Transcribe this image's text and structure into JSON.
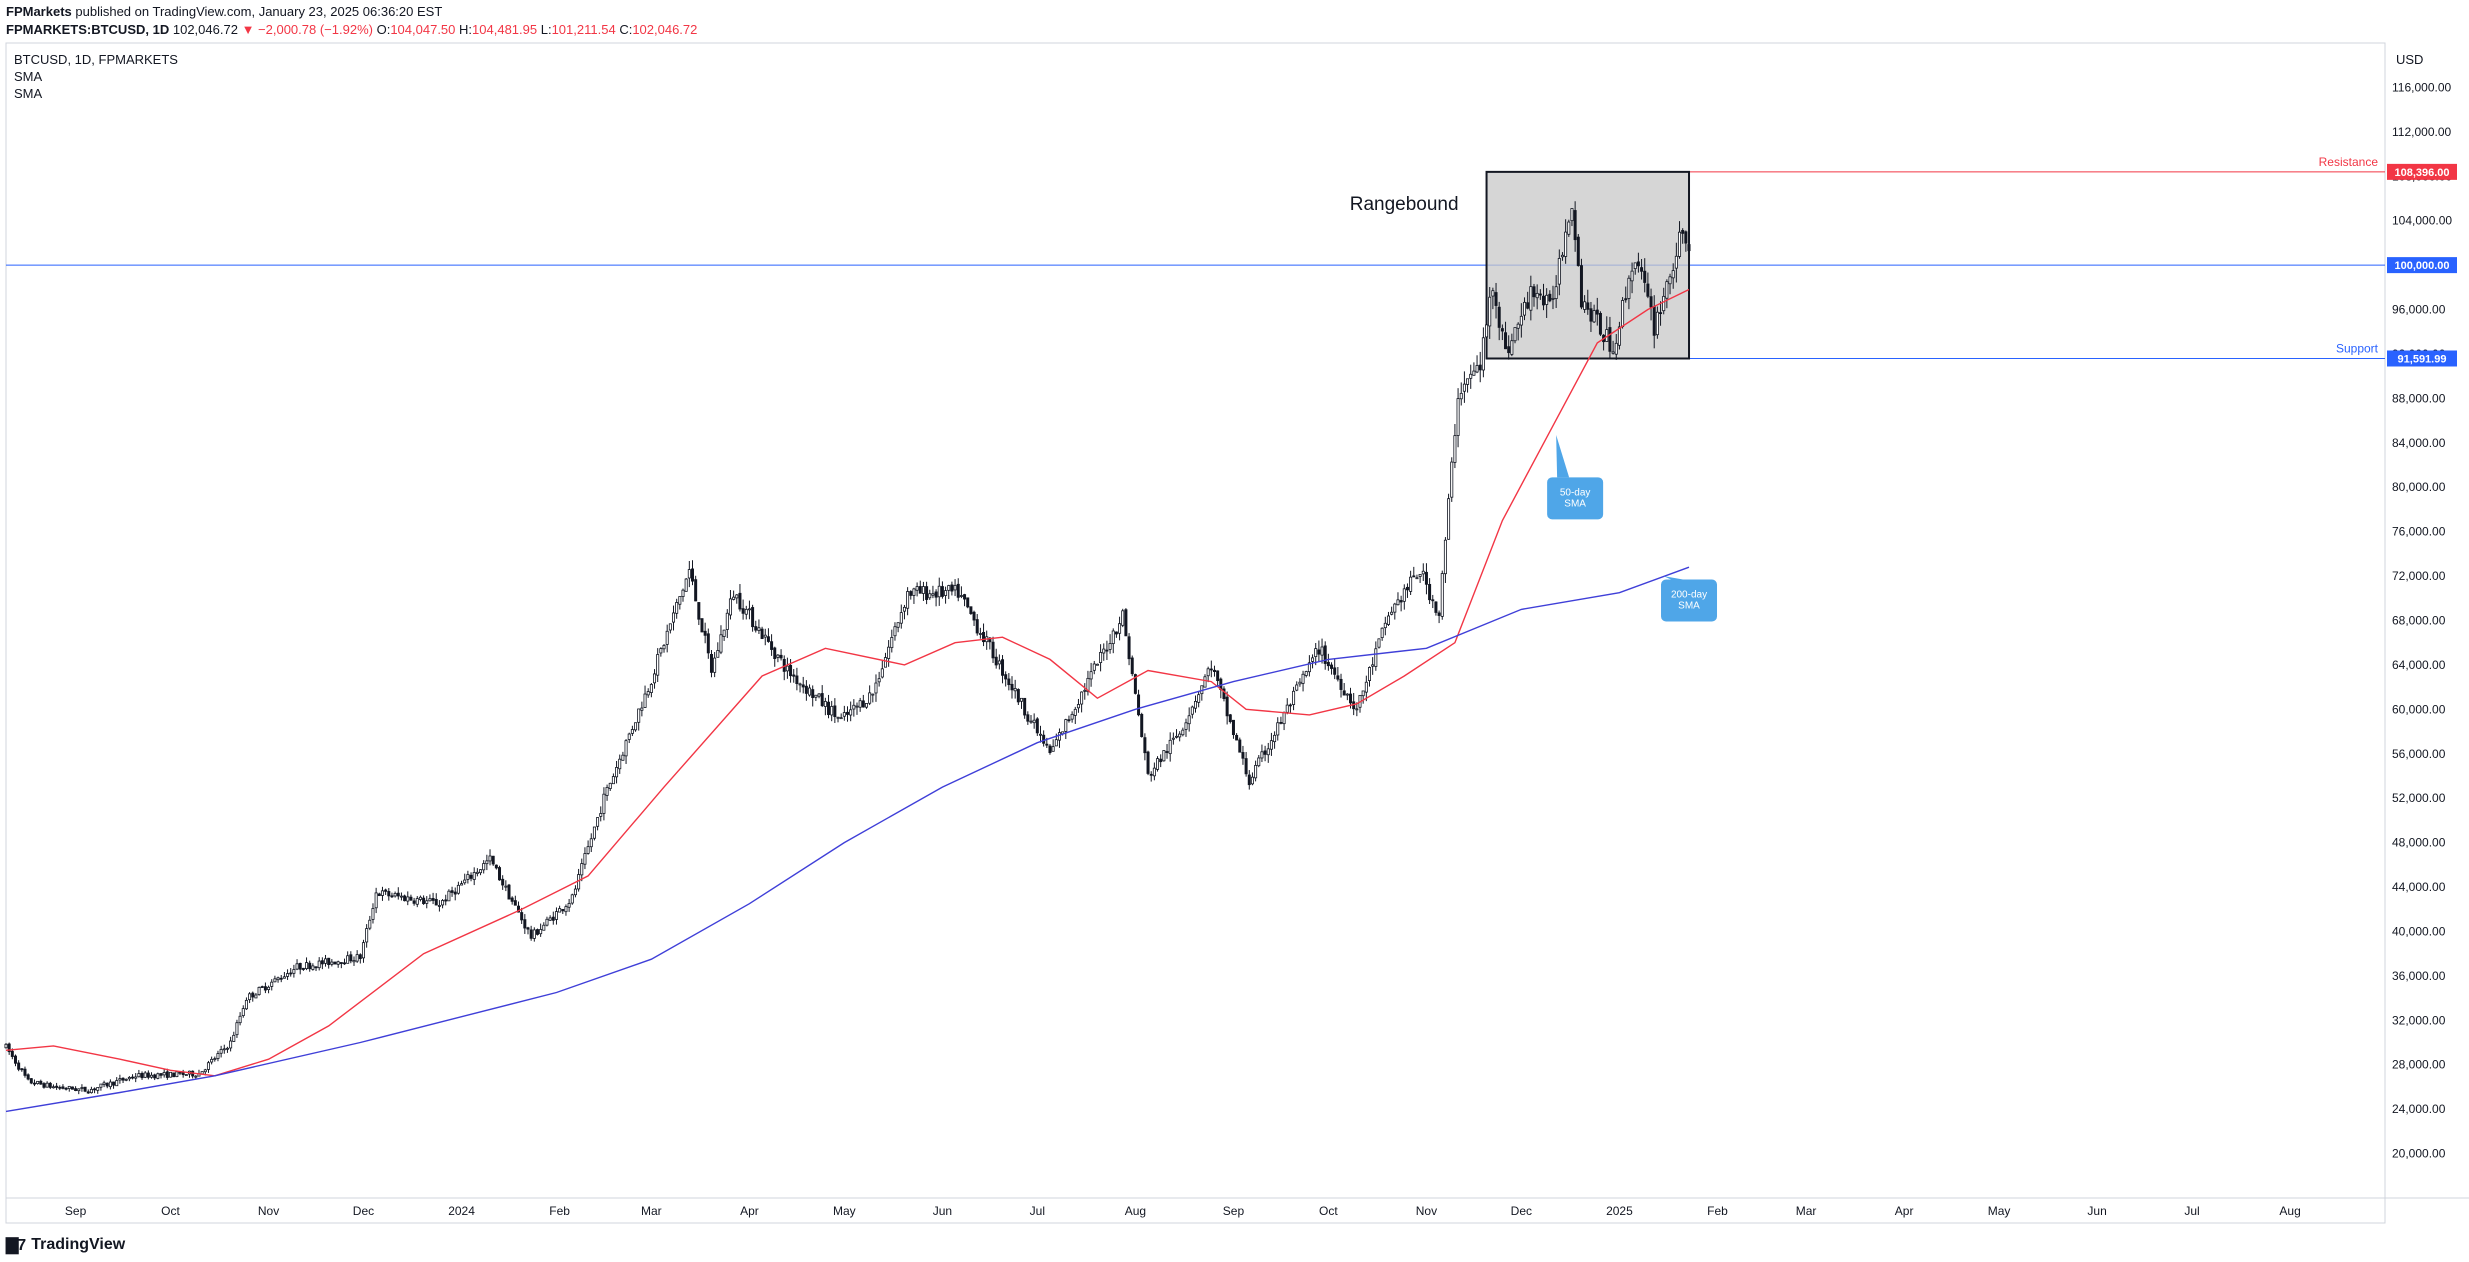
{
  "header": {
    "publisher": "FPMarkets",
    "published_text": "published on TradingView.com, January 23, 2025 06:36:20 EST",
    "symbol": "FPMARKETS:BTCUSD, 1D",
    "last": "102,046.72",
    "change": "▼ −2,000.78 (−1.92%)",
    "o_label": "O:",
    "o": "104,047.50",
    "h_label": "H:",
    "h": "104,481.95",
    "l_label": "L:",
    "l": "101,211.54",
    "c_label": "C:",
    "c": "102,046.72"
  },
  "legend": {
    "title": "BTCUSD, 1D, FPMARKETS",
    "sma1": "SMA",
    "sma2": "SMA"
  },
  "currency": "USD",
  "footer": {
    "brand": "TradingView",
    "logo_icon": "tradingview-logo-icon"
  },
  "colors": {
    "bull": "#131722",
    "bear": "#131722",
    "sma50": "#f23645",
    "sma200": "#3f3fd8",
    "level": "#2962ff",
    "resistance": "#f23645",
    "box_fill": "#c8c8c8",
    "callout": "#4fa6e8"
  },
  "chart_data": {
    "type": "candlestick",
    "title": "",
    "y_min": 16000,
    "y_max": 120000,
    "y_ticks": [
      "116,000.00",
      "112,000.00",
      "108,000.00",
      "104,000.00",
      "100,000.00",
      "96,000.00",
      "92,000.00",
      "88,000.00",
      "84,000.00",
      "80,000.00",
      "76,000.00",
      "72,000.00",
      "68,000.00",
      "64,000.00",
      "60,000.00",
      "56,000.00",
      "52,000.00",
      "48,000.00",
      "44,000.00",
      "40,000.00",
      "36,000.00",
      "32,000.00",
      "28,000.00",
      "24,000.00",
      "20,000.00"
    ],
    "x_start": "2023-08-10",
    "x_end": "2025-08-31",
    "x_ticks": [
      {
        "label": "Sep",
        "date": "2023-09-01"
      },
      {
        "label": "Oct",
        "date": "2023-10-01"
      },
      {
        "label": "Nov",
        "date": "2023-11-01"
      },
      {
        "label": "Dec",
        "date": "2023-12-01"
      },
      {
        "label": "2024",
        "date": "2024-01-01"
      },
      {
        "label": "Feb",
        "date": "2024-02-01"
      },
      {
        "label": "Mar",
        "date": "2024-03-01"
      },
      {
        "label": "Apr",
        "date": "2024-04-01"
      },
      {
        "label": "May",
        "date": "2024-05-01"
      },
      {
        "label": "Jun",
        "date": "2024-06-01"
      },
      {
        "label": "Jul",
        "date": "2024-07-01"
      },
      {
        "label": "Aug",
        "date": "2024-08-01"
      },
      {
        "label": "Sep",
        "date": "2024-09-01"
      },
      {
        "label": "Oct",
        "date": "2024-10-01"
      },
      {
        "label": "Nov",
        "date": "2024-11-01"
      },
      {
        "label": "Dec",
        "date": "2024-12-01"
      },
      {
        "label": "2025",
        "date": "2025-01-01"
      },
      {
        "label": "Feb",
        "date": "2025-02-01"
      },
      {
        "label": "Mar",
        "date": "2025-03-01"
      },
      {
        "label": "Apr",
        "date": "2025-04-01"
      },
      {
        "label": "May",
        "date": "2025-05-01"
      },
      {
        "label": "Jun",
        "date": "2025-06-01"
      },
      {
        "label": "Jul",
        "date": "2025-07-01"
      },
      {
        "label": "Aug",
        "date": "2025-08-01"
      }
    ],
    "price_path": [
      [
        "2023-08-10",
        29600
      ],
      [
        "2023-08-17",
        26500
      ],
      [
        "2023-08-25",
        26000
      ],
      [
        "2023-09-05",
        25700
      ],
      [
        "2023-09-20",
        27000
      ],
      [
        "2023-10-10",
        27200
      ],
      [
        "2023-10-20",
        30000
      ],
      [
        "2023-10-25",
        34000
      ],
      [
        "2023-11-10",
        36800
      ],
      [
        "2023-11-30",
        37700
      ],
      [
        "2023-12-05",
        43500
      ],
      [
        "2023-12-25",
        42500
      ],
      [
        "2024-01-10",
        46500
      ],
      [
        "2024-01-23",
        39500
      ],
      [
        "2024-02-05",
        43000
      ],
      [
        "2024-02-15",
        52000
      ],
      [
        "2024-02-29",
        62000
      ],
      [
        "2024-03-13",
        72500
      ],
      [
        "2024-03-20",
        63500
      ],
      [
        "2024-03-27",
        70500
      ],
      [
        "2024-04-13",
        63500
      ],
      [
        "2024-04-30",
        59000
      ],
      [
        "2024-05-10",
        61500
      ],
      [
        "2024-05-21",
        70500
      ],
      [
        "2024-06-06",
        70500
      ],
      [
        "2024-06-25",
        61000
      ],
      [
        "2024-07-05",
        56000
      ],
      [
        "2024-07-28",
        68500
      ],
      [
        "2024-08-05",
        54000
      ],
      [
        "2024-08-15",
        58000
      ],
      [
        "2024-08-25",
        64000
      ],
      [
        "2024-09-06",
        53500
      ],
      [
        "2024-09-28",
        65500
      ],
      [
        "2024-10-10",
        60000
      ],
      [
        "2024-10-20",
        68500
      ],
      [
        "2024-10-30",
        72500
      ],
      [
        "2024-11-05",
        68500
      ],
      [
        "2024-11-11",
        88500
      ],
      [
        "2024-11-18",
        91000
      ],
      [
        "2024-11-22",
        98500
      ],
      [
        "2024-11-26",
        92000
      ],
      [
        "2024-12-05",
        98000
      ],
      [
        "2024-12-10",
        96000
      ],
      [
        "2024-12-17",
        106000
      ],
      [
        "2024-12-20",
        97000
      ],
      [
        "2024-12-30",
        92500
      ],
      [
        "2025-01-06",
        101000
      ],
      [
        "2025-01-12",
        94500
      ],
      [
        "2025-01-20",
        102000
      ],
      [
        "2025-01-23",
        102046.72
      ]
    ],
    "sma50": [
      [
        "2023-08-10",
        29300
      ],
      [
        "2023-08-25",
        29700
      ],
      [
        "2023-09-15",
        28500
      ],
      [
        "2023-10-01",
        27500
      ],
      [
        "2023-10-15",
        27000
      ],
      [
        "2023-11-01",
        28500
      ],
      [
        "2023-11-20",
        31500
      ],
      [
        "2023-12-20",
        38000
      ],
      [
        "2024-01-20",
        42000
      ],
      [
        "2024-02-10",
        45000
      ],
      [
        "2024-03-05",
        53000
      ],
      [
        "2024-04-05",
        63000
      ],
      [
        "2024-04-25",
        65500
      ],
      [
        "2024-05-20",
        64000
      ],
      [
        "2024-06-05",
        66000
      ],
      [
        "2024-06-20",
        66500
      ],
      [
        "2024-07-05",
        64500
      ],
      [
        "2024-07-20",
        61000
      ],
      [
        "2024-08-05",
        63500
      ],
      [
        "2024-08-25",
        62500
      ],
      [
        "2024-09-05",
        60000
      ],
      [
        "2024-09-25",
        59500
      ],
      [
        "2024-10-10",
        60500
      ],
      [
        "2024-10-25",
        63000
      ],
      [
        "2024-11-10",
        66000
      ],
      [
        "2024-11-25",
        77000
      ],
      [
        "2024-12-10",
        85000
      ],
      [
        "2024-12-25",
        93000
      ],
      [
        "2025-01-10",
        96000
      ],
      [
        "2025-01-23",
        97800
      ]
    ],
    "sma200": [
      [
        "2023-08-10",
        23800
      ],
      [
        "2023-09-15",
        25500
      ],
      [
        "2023-10-15",
        27000
      ],
      [
        "2023-11-30",
        30000
      ],
      [
        "2024-01-31",
        34500
      ],
      [
        "2024-03-01",
        37500
      ],
      [
        "2024-04-01",
        42500
      ],
      [
        "2024-05-01",
        48000
      ],
      [
        "2024-06-01",
        53000
      ],
      [
        "2024-07-01",
        57000
      ],
      [
        "2024-08-01",
        60000
      ],
      [
        "2024-09-01",
        62500
      ],
      [
        "2024-10-01",
        64500
      ],
      [
        "2024-11-01",
        65500
      ],
      [
        "2024-12-01",
        69000
      ],
      [
        "2025-01-01",
        70500
      ],
      [
        "2025-01-23",
        72800
      ]
    ],
    "range_box": {
      "start": "2024-11-20",
      "end": "2025-01-23",
      "top": 108396,
      "bottom": 91591.99,
      "label": "Rangebound"
    },
    "levels": [
      {
        "name": "Resistance",
        "value": 108396,
        "value_label": "108,396.00",
        "kind": "resistance",
        "from": "2025-01-23"
      },
      {
        "name": "",
        "value": 100000,
        "value_label": "100,000.00",
        "kind": "level",
        "from": "2023-08-10"
      },
      {
        "name": "Support",
        "value": 91591.99,
        "value_label": "91,591.99",
        "kind": "support",
        "from": "2025-01-23"
      }
    ],
    "annotations": [
      {
        "text": [
          "50-day",
          "SMA"
        ],
        "date": "2024-12-18",
        "value": 79000,
        "point_date": "2024-12-12",
        "point_value": 84700
      },
      {
        "text": [
          "200-day",
          "SMA"
        ],
        "date": "2025-01-23",
        "value": 69800,
        "point_date": "2025-01-15",
        "point_value": 72000
      }
    ]
  }
}
